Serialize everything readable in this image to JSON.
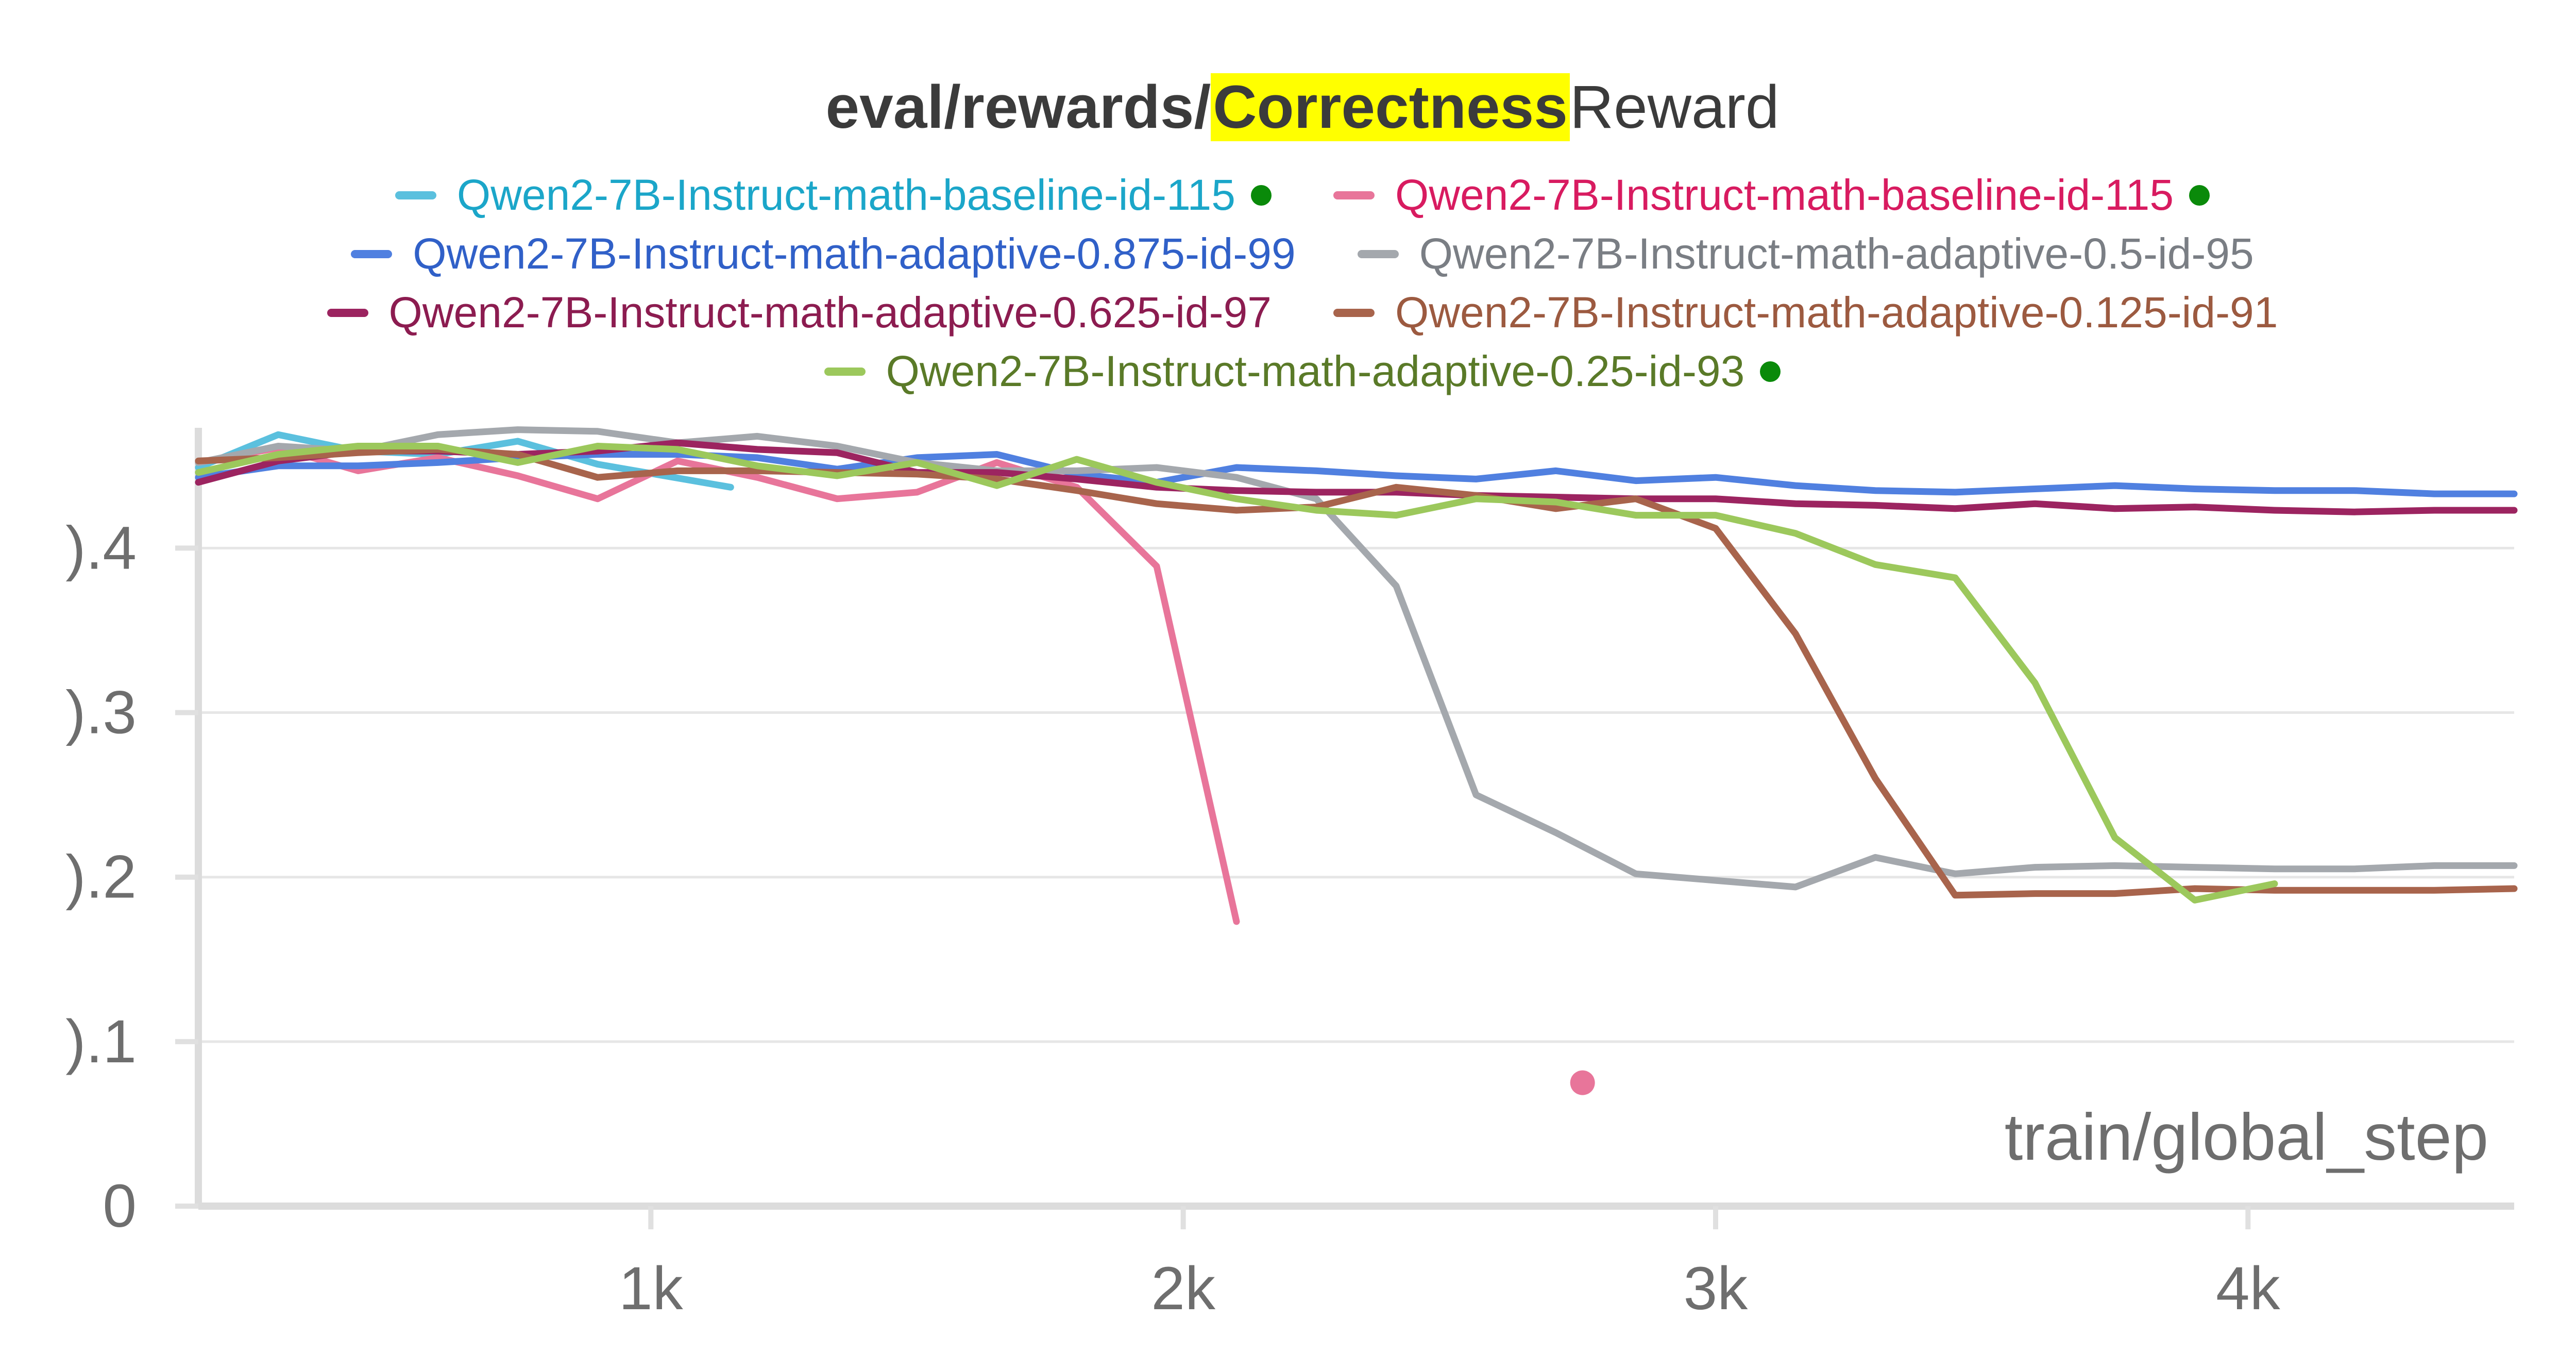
{
  "chart_data": {
    "type": "line",
    "title_highlight_color": "#ffff00",
    "title_parts": [
      "eval/rewards/",
      "Correctness",
      "Reward"
    ],
    "xlabel": "train/global_step",
    "ylabel": "",
    "xlim": [
      150,
      4500
    ],
    "ylim": [
      0,
      0.47
    ],
    "xticks": [
      1000,
      2000,
      3000,
      4000
    ],
    "xtick_labels": [
      "1k",
      "2k",
      "3k",
      "4k"
    ],
    "yticks": [
      0,
      0.1,
      0.2,
      0.3,
      0.4
    ],
    "ytick_labels": [
      "0",
      ").1",
      ").2",
      ").3",
      ").4"
    ],
    "grid": true,
    "legend_position": "top",
    "series": [
      {
        "name": "Qwen2-7B-Instruct-math-baseline-id-115",
        "color": "#5bc0de",
        "text_color": "#1ba6c9",
        "marker_dot": true,
        "points": [
          [
            150,
            0.449
          ],
          [
            300,
            0.469
          ],
          [
            450,
            0.459
          ],
          [
            600,
            0.457
          ],
          [
            750,
            0.465
          ],
          [
            900,
            0.451
          ],
          [
            1150,
            0.437
          ]
        ]
      },
      {
        "name": "Qwen2-7B-Instruct-math-baseline-id-115",
        "color": "#e8759a",
        "text_color": "#d81b60",
        "marker_dot": true,
        "points": [
          [
            150,
            0.452
          ],
          [
            300,
            0.461
          ],
          [
            450,
            0.447
          ],
          [
            600,
            0.455
          ],
          [
            750,
            0.444
          ],
          [
            900,
            0.43
          ],
          [
            1050,
            0.453
          ],
          [
            1200,
            0.443
          ],
          [
            1350,
            0.43
          ],
          [
            1500,
            0.434
          ],
          [
            1650,
            0.452
          ],
          [
            1800,
            0.437
          ],
          [
            1950,
            0.389
          ],
          [
            2100,
            0.173
          ],
          [
            2750,
            0.075
          ]
        ]
      },
      {
        "name": "Qwen2-7B-Instruct-math-adaptive-0.875-id-99",
        "color": "#5080e0",
        "text_color": "#3060c8",
        "marker_dot": false,
        "points": [
          [
            150,
            0.443
          ],
          [
            300,
            0.45
          ],
          [
            450,
            0.45
          ],
          [
            600,
            0.452
          ],
          [
            750,
            0.455
          ],
          [
            900,
            0.457
          ],
          [
            1050,
            0.457
          ],
          [
            1200,
            0.455
          ],
          [
            1350,
            0.448
          ],
          [
            1500,
            0.455
          ],
          [
            1650,
            0.457
          ],
          [
            1800,
            0.445
          ],
          [
            1950,
            0.44
          ],
          [
            2100,
            0.449
          ],
          [
            2250,
            0.447
          ],
          [
            2400,
            0.444
          ],
          [
            2550,
            0.442
          ],
          [
            2700,
            0.447
          ],
          [
            2850,
            0.441
          ],
          [
            3000,
            0.443
          ],
          [
            3150,
            0.438
          ],
          [
            3300,
            0.435
          ],
          [
            3450,
            0.434
          ],
          [
            3600,
            0.436
          ],
          [
            3750,
            0.438
          ],
          [
            3900,
            0.436
          ],
          [
            4050,
            0.435
          ],
          [
            4200,
            0.435
          ],
          [
            4350,
            0.433
          ],
          [
            4500,
            0.433
          ]
        ]
      },
      {
        "name": "Qwen2-7B-Instruct-math-adaptive-0.5-id-95",
        "color": "#a4a8ad",
        "text_color": "#7a7e84",
        "marker_dot": false,
        "points": [
          [
            150,
            0.452
          ],
          [
            300,
            0.462
          ],
          [
            450,
            0.459
          ],
          [
            600,
            0.469
          ],
          [
            750,
            0.472
          ],
          [
            900,
            0.471
          ],
          [
            1050,
            0.464
          ],
          [
            1200,
            0.468
          ],
          [
            1350,
            0.462
          ],
          [
            1500,
            0.452
          ],
          [
            1650,
            0.447
          ],
          [
            1800,
            0.447
          ],
          [
            1950,
            0.449
          ],
          [
            2100,
            0.443
          ],
          [
            2250,
            0.43
          ],
          [
            2400,
            0.377
          ],
          [
            2550,
            0.25
          ],
          [
            2700,
            0.227
          ],
          [
            2850,
            0.202
          ],
          [
            3000,
            0.198
          ],
          [
            3150,
            0.194
          ],
          [
            3300,
            0.212
          ],
          [
            3450,
            0.202
          ],
          [
            3600,
            0.206
          ],
          [
            3750,
            0.207
          ],
          [
            3900,
            0.206
          ],
          [
            4050,
            0.205
          ],
          [
            4200,
            0.205
          ],
          [
            4350,
            0.207
          ],
          [
            4500,
            0.207
          ]
        ]
      },
      {
        "name": "Qwen2-7B-Instruct-math-adaptive-0.625-id-97",
        "color": "#9c2460",
        "text_color": "#8c1c50",
        "marker_dot": false,
        "points": [
          [
            150,
            0.44
          ],
          [
            300,
            0.453
          ],
          [
            450,
            0.459
          ],
          [
            600,
            0.459
          ],
          [
            750,
            0.457
          ],
          [
            900,
            0.459
          ],
          [
            1050,
            0.464
          ],
          [
            1200,
            0.46
          ],
          [
            1350,
            0.458
          ],
          [
            1500,
            0.446
          ],
          [
            1650,
            0.446
          ],
          [
            1800,
            0.442
          ],
          [
            1950,
            0.437
          ],
          [
            2100,
            0.435
          ],
          [
            2250,
            0.434
          ],
          [
            2400,
            0.434
          ],
          [
            2550,
            0.432
          ],
          [
            2700,
            0.431
          ],
          [
            2850,
            0.43
          ],
          [
            3000,
            0.43
          ],
          [
            3150,
            0.427
          ],
          [
            3300,
            0.426
          ],
          [
            3450,
            0.424
          ],
          [
            3600,
            0.427
          ],
          [
            3750,
            0.424
          ],
          [
            3900,
            0.425
          ],
          [
            4050,
            0.423
          ],
          [
            4200,
            0.422
          ],
          [
            4350,
            0.423
          ],
          [
            4500,
            0.423
          ]
        ]
      },
      {
        "name": "Qwen2-7B-Instruct-math-adaptive-0.125-id-91",
        "color": "#a8644c",
        "text_color": "#9c5a40",
        "marker_dot": false,
        "points": [
          [
            150,
            0.453
          ],
          [
            300,
            0.455
          ],
          [
            450,
            0.458
          ],
          [
            600,
            0.46
          ],
          [
            750,
            0.457
          ],
          [
            900,
            0.443
          ],
          [
            1050,
            0.447
          ],
          [
            1200,
            0.447
          ],
          [
            1350,
            0.446
          ],
          [
            1500,
            0.445
          ],
          [
            1650,
            0.442
          ],
          [
            1800,
            0.435
          ],
          [
            1950,
            0.427
          ],
          [
            2100,
            0.423
          ],
          [
            2250,
            0.425
          ],
          [
            2400,
            0.437
          ],
          [
            2550,
            0.432
          ],
          [
            2700,
            0.424
          ],
          [
            2850,
            0.43
          ],
          [
            3000,
            0.412
          ],
          [
            3150,
            0.348
          ],
          [
            3300,
            0.26
          ],
          [
            3450,
            0.189
          ],
          [
            3600,
            0.19
          ],
          [
            3750,
            0.19
          ],
          [
            3900,
            0.193
          ],
          [
            4050,
            0.192
          ],
          [
            4200,
            0.192
          ],
          [
            4350,
            0.192
          ],
          [
            4500,
            0.193
          ]
        ]
      },
      {
        "name": "Qwen2-7B-Instruct-math-adaptive-0.25-id-93",
        "color": "#9cc85c",
        "text_color": "#5a7a28",
        "marker_dot": true,
        "points": [
          [
            150,
            0.446
          ],
          [
            300,
            0.457
          ],
          [
            450,
            0.462
          ],
          [
            600,
            0.462
          ],
          [
            750,
            0.452
          ],
          [
            900,
            0.462
          ],
          [
            1050,
            0.46
          ],
          [
            1200,
            0.45
          ],
          [
            1350,
            0.444
          ],
          [
            1500,
            0.452
          ],
          [
            1650,
            0.438
          ],
          [
            1800,
            0.454
          ],
          [
            1950,
            0.44
          ],
          [
            2100,
            0.43
          ],
          [
            2250,
            0.423
          ],
          [
            2400,
            0.42
          ],
          [
            2550,
            0.43
          ],
          [
            2700,
            0.428
          ],
          [
            2850,
            0.42
          ],
          [
            3000,
            0.42
          ],
          [
            3150,
            0.409
          ],
          [
            3300,
            0.39
          ],
          [
            3450,
            0.382
          ],
          [
            3600,
            0.318
          ],
          [
            3750,
            0.224
          ],
          [
            3900,
            0.186
          ],
          [
            4050,
            0.196
          ]
        ]
      }
    ]
  }
}
